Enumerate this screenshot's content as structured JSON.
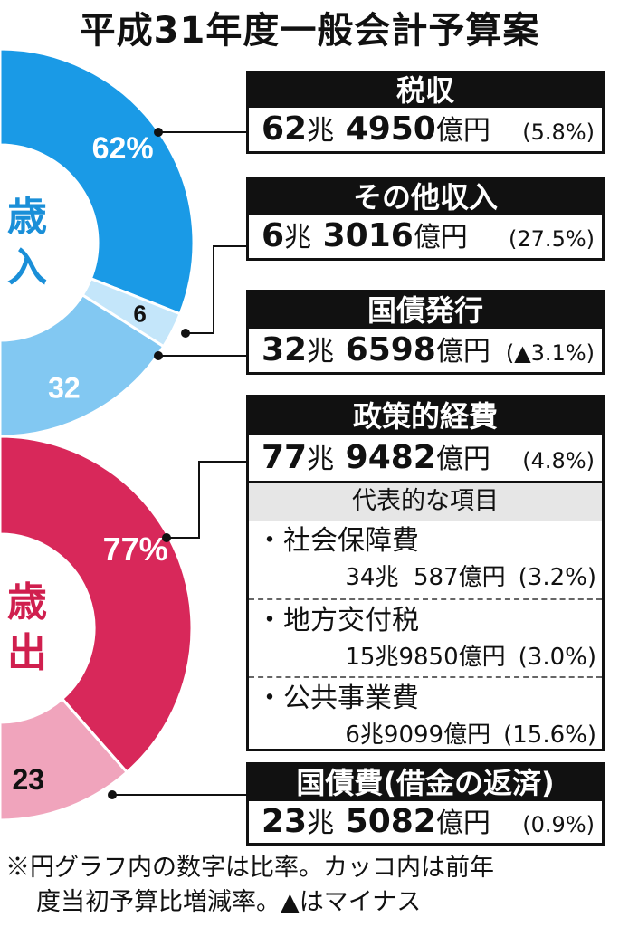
{
  "title": "平成31年度一般会計予算案",
  "chart_data": [
    {
      "type": "pie",
      "title": "歳入",
      "categories": [
        "税収",
        "その他収入",
        "国債発行"
      ],
      "values": [
        62,
        6,
        32
      ],
      "labels": [
        "62%",
        "6",
        "32"
      ],
      "colors": [
        "#1a9ae6",
        "#c4e6fa",
        "#82c8f2"
      ],
      "details": [
        {
          "name": "税収",
          "cho": "62",
          "oku": "4950",
          "change": "(5.8%)"
        },
        {
          "name": "その他収入",
          "cho": "6",
          "oku": "3016",
          "change": "(27.5%)"
        },
        {
          "name": "国債発行",
          "cho": "32",
          "oku": "6598",
          "change": "(▲3.1%)"
        }
      ]
    },
    {
      "type": "pie",
      "title": "歳出",
      "categories": [
        "政策的経費",
        "国債費(借金の返済)"
      ],
      "values": [
        77,
        23
      ],
      "labels": [
        "77%",
        "23"
      ],
      "colors": [
        "#d8285a",
        "#f0a4bc"
      ],
      "details": [
        {
          "name": "政策的経費",
          "cho": "77",
          "oku": "9482",
          "change": "(4.8%)"
        },
        {
          "name": "国債費(借金の返済)",
          "cho": "23",
          "oku": "5082",
          "change": "(0.9%)"
        }
      ]
    }
  ],
  "units": {
    "cho": "兆",
    "oku": "億円"
  },
  "breakdown": {
    "header": "代表的な項目",
    "items": [
      {
        "name": "・社会保障費",
        "cho": "34兆",
        "oku": "587",
        "unit": "億円",
        "change": "(3.2%)"
      },
      {
        "name": "・地方交付税",
        "cho": "15兆",
        "oku": "9850",
        "unit": "億円",
        "change": "(3.0%)"
      },
      {
        "name": "・公共事業費",
        "cho": "6兆",
        "oku": "9099",
        "unit": "億円",
        "change": "(15.6%)"
      }
    ]
  },
  "note": [
    "※円グラフ内の数字は比率。カッコ内は前年",
    "度当初予算比増減率。▲はマイナス"
  ]
}
